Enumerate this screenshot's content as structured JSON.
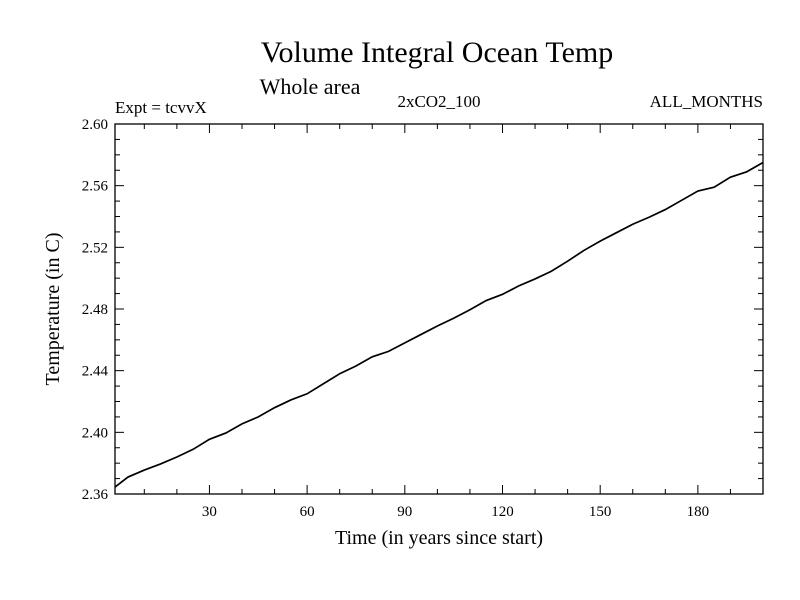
{
  "chart_data": {
    "type": "line",
    "title": "Volume Integral Ocean Temp",
    "subtitle": "Whole area",
    "header_left": "Expt = tcvvX",
    "header_center": "2xCO2_100",
    "header_right": "ALL_MONTHS",
    "xlabel": "Time (in years since start)",
    "ylabel": "Temperature (in C)",
    "xlim": [
      1,
      200
    ],
    "ylim": [
      2.36,
      2.6
    ],
    "xticks": [
      30,
      60,
      90,
      120,
      150,
      180
    ],
    "yticks": [
      2.36,
      2.4,
      2.44,
      2.48,
      2.52,
      2.56,
      2.6
    ],
    "ytick_labels": [
      "2.36",
      "2.40",
      "2.44",
      "2.48",
      "2.52",
      "2.56",
      "2.60"
    ],
    "grid": false,
    "series": [
      {
        "x": [
          1,
          5,
          10,
          15,
          20,
          25,
          30,
          35,
          40,
          45,
          50,
          55,
          60,
          65,
          70,
          75,
          80,
          85,
          90,
          95,
          100,
          105,
          110,
          115,
          120,
          125,
          130,
          135,
          140,
          145,
          150,
          155,
          160,
          165,
          170,
          175,
          180,
          185,
          190,
          195,
          200
        ],
        "values": [
          2.3645,
          2.371,
          2.3755,
          2.3795,
          2.384,
          2.389,
          2.3955,
          2.3995,
          2.4055,
          2.41,
          2.416,
          2.421,
          2.425,
          2.4315,
          2.438,
          2.443,
          2.449,
          2.4525,
          2.458,
          2.4635,
          2.469,
          2.474,
          2.4795,
          2.4855,
          2.4895,
          2.495,
          2.4995,
          2.5045,
          2.511,
          2.518,
          2.524,
          2.5295,
          2.535,
          2.5395,
          2.5445,
          2.5505,
          2.5565,
          2.559,
          2.5655,
          2.569,
          2.575
        ]
      }
    ]
  }
}
